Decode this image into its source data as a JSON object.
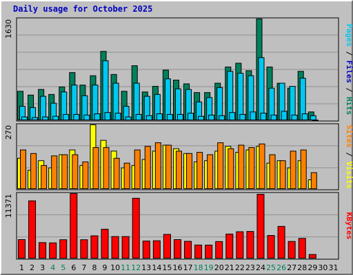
{
  "title": "Daily usage for October 2025",
  "colors": {
    "background": "#c0c0c0",
    "plot_bg": "#bfbfbf",
    "grid": "#8f8f8f",
    "hits": "#00805c",
    "files": "#00c8f0",
    "pages": "#00c8f0",
    "visits": "#ffff00",
    "sites": "#ff8000",
    "kbytes": "#ff0000",
    "weekday_label": "#000000",
    "weekend_label": "#00805c",
    "title": "#0000c0"
  },
  "chart_data": [
    {
      "type": "bar",
      "panel": "hits-files-pages",
      "max_label": "1630",
      "ylim": [
        0,
        1630
      ],
      "legend": {
        "position": "right",
        "parts": [
          {
            "text": "Pages",
            "color": "#00c8f0"
          },
          {
            "text": " / ",
            "color": "#000000"
          },
          {
            "text": "Files",
            "color": "#0000c0"
          },
          {
            "text": " / ",
            "color": "#000000"
          },
          {
            "text": "Hits",
            "color": "#00805c"
          }
        ]
      },
      "categories": [
        "1",
        "2",
        "3",
        "4",
        "5",
        "6",
        "7",
        "8",
        "9",
        "10",
        "11",
        "12",
        "13",
        "14",
        "15",
        "16",
        "17",
        "18",
        "19",
        "20",
        "21",
        "22",
        "23",
        "24",
        "25",
        "26",
        "27",
        "28",
        "29",
        "30",
        "31"
      ],
      "series": [
        {
          "name": "Hits",
          "values": [
            470,
            410,
            500,
            420,
            540,
            770,
            570,
            720,
            1110,
            740,
            470,
            880,
            460,
            550,
            810,
            650,
            590,
            450,
            450,
            600,
            860,
            920,
            800,
            1630,
            860,
            600,
            520,
            790,
            140,
            0,
            0
          ]
        },
        {
          "name": "Files",
          "values": [
            230,
            210,
            390,
            280,
            460,
            570,
            400,
            570,
            960,
            600,
            230,
            600,
            390,
            420,
            670,
            510,
            500,
            300,
            370,
            530,
            790,
            760,
            720,
            1010,
            520,
            600,
            550,
            680,
            80,
            0,
            0
          ]
        },
        {
          "name": "Pages",
          "values": [
            60,
            50,
            60,
            70,
            100,
            100,
            90,
            110,
            130,
            120,
            60,
            100,
            80,
            110,
            100,
            100,
            120,
            70,
            90,
            80,
            130,
            100,
            140,
            120,
            90,
            150,
            90,
            110,
            10,
            0,
            0
          ]
        }
      ]
    },
    {
      "type": "bar",
      "panel": "visits-sites",
      "max_label": "270",
      "ylim": [
        0,
        270
      ],
      "legend": {
        "position": "right",
        "parts": [
          {
            "text": "Sites",
            "color": "#ff8000"
          },
          {
            "text": " / ",
            "color": "#000000"
          },
          {
            "text": "Visits",
            "color": "#ffff00"
          }
        ]
      },
      "categories": [
        "1",
        "2",
        "3",
        "4",
        "5",
        "6",
        "7",
        "8",
        "9",
        "10",
        "11",
        "12",
        "13",
        "14",
        "15",
        "16",
        "17",
        "18",
        "19",
        "20",
        "21",
        "22",
        "23",
        "24",
        "25",
        "26",
        "27",
        "28",
        "29",
        "30",
        "31"
      ],
      "series": [
        {
          "name": "Visits",
          "values": [
            130,
            80,
            120,
            90,
            145,
            165,
            100,
            270,
            205,
            160,
            90,
            100,
            125,
            160,
            185,
            170,
            150,
            115,
            120,
            160,
            180,
            155,
            165,
            180,
            110,
            120,
            90,
            120,
            40,
            0,
            0
          ]
        },
        {
          "name": "Sites",
          "values": [
            165,
            150,
            100,
            140,
            145,
            145,
            115,
            175,
            175,
            130,
            110,
            165,
            180,
            195,
            185,
            160,
            150,
            155,
            145,
            195,
            170,
            185,
            175,
            190,
            145,
            120,
            160,
            165,
            70,
            0,
            0
          ]
        }
      ]
    },
    {
      "type": "bar",
      "panel": "kbytes",
      "max_label": "11371",
      "ylim": [
        0,
        11371
      ],
      "legend": {
        "position": "right",
        "parts": [
          {
            "text": "KBytes",
            "color": "#ff0000"
          }
        ]
      },
      "categories": [
        "1",
        "2",
        "3",
        "4",
        "5",
        "6",
        "7",
        "8",
        "9",
        "10",
        "11",
        "12",
        "13",
        "14",
        "15",
        "16",
        "17",
        "18",
        "19",
        "20",
        "21",
        "22",
        "23",
        "24",
        "25",
        "26",
        "27",
        "28",
        "29",
        "30",
        "31"
      ],
      "series": [
        {
          "name": "KBytes",
          "values": [
            3350,
            10100,
            2830,
            2780,
            3330,
            11371,
            3330,
            4010,
            5160,
            3880,
            3880,
            10550,
            3100,
            3150,
            4260,
            3350,
            3050,
            2410,
            2400,
            3010,
            4320,
            4720,
            4770,
            11250,
            4070,
            5650,
            3030,
            3560,
            760,
            0,
            0
          ]
        }
      ]
    }
  ],
  "weekend_days": [
    4,
    5,
    11,
    12,
    18,
    19,
    25,
    26
  ]
}
